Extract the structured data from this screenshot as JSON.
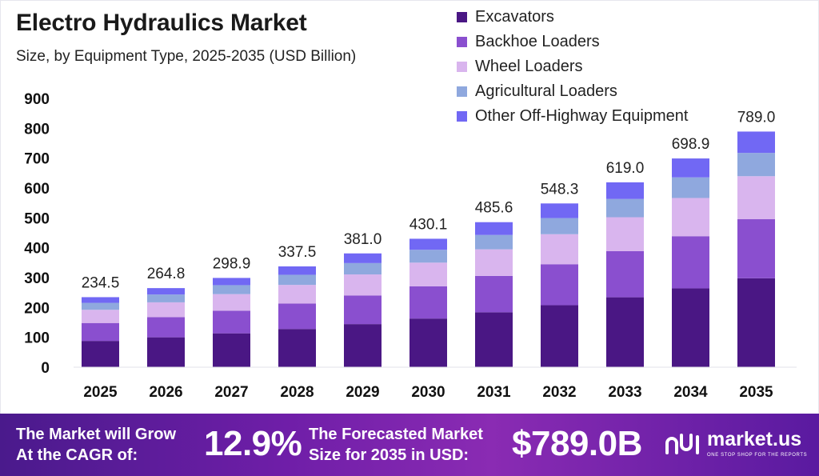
{
  "title": "Electro Hydraulics Market",
  "subtitle": "Size, by Equipment Type, 2025-2035 (USD Billion)",
  "chart_data": {
    "type": "bar",
    "stacked": true,
    "categories": [
      "2025",
      "2026",
      "2027",
      "2028",
      "2029",
      "2030",
      "2031",
      "2032",
      "2033",
      "2034",
      "2035"
    ],
    "totals": [
      234.5,
      264.8,
      298.9,
      337.5,
      381.0,
      430.1,
      485.6,
      548.3,
      619.0,
      698.9,
      789.0
    ],
    "total_labels": [
      "234.5",
      "264.8",
      "298.9",
      "337.5",
      "381.0",
      "430.1",
      "485.6",
      "548.3",
      "619.0",
      "698.9",
      "789.0"
    ],
    "series": [
      {
        "name": "Excavators",
        "color": "#4a1784",
        "values": [
          88.0,
          100.1,
          113.4,
          128.0,
          144.3,
          162.9,
          183.9,
          207.5,
          234.1,
          264.0,
          297.8
        ]
      },
      {
        "name": "Backhoe Loaders",
        "color": "#8a4fcf",
        "values": [
          60.0,
          67.5,
          75.8,
          85.0,
          96.0,
          108.1,
          121.7,
          137.3,
          154.3,
          174.6,
          197.7
        ]
      },
      {
        "name": "Wheel Loaders",
        "color": "#d9b5ee",
        "values": [
          44.2,
          49.6,
          55.5,
          62.5,
          70.3,
          79.1,
          89.1,
          100.5,
          113.8,
          128.0,
          144.0
        ]
      },
      {
        "name": "Agricultural Loaders",
        "color": "#8fa8de",
        "values": [
          23.2,
          26.2,
          30.0,
          34.0,
          38.0,
          43.0,
          48.0,
          54.0,
          61.0,
          69.0,
          78.0
        ]
      },
      {
        "name": "Other Off-Highway Equipment",
        "color": "#7168f4",
        "values": [
          19.1,
          21.4,
          24.2,
          28.0,
          32.4,
          37.0,
          42.9,
          49.0,
          55.8,
          63.3,
          71.5
        ]
      }
    ],
    "yticks": [
      0,
      100,
      200,
      300,
      400,
      500,
      600,
      700,
      800,
      900
    ],
    "ylim": [
      0,
      900
    ],
    "legend": "top-right",
    "grid": false
  },
  "footer": {
    "cagr_label_line1": "The Market will Grow",
    "cagr_label_line2": "At the CAGR of:",
    "cagr_value": "12.9%",
    "forecast_label_line1": "The Forecasted Market",
    "forecast_label_line2": "Size for 2035 in USD:",
    "forecast_value": "$789.0B",
    "brand_name": "market.us",
    "brand_tagline": "ONE STOP SHOP FOR THE REPORTS"
  }
}
